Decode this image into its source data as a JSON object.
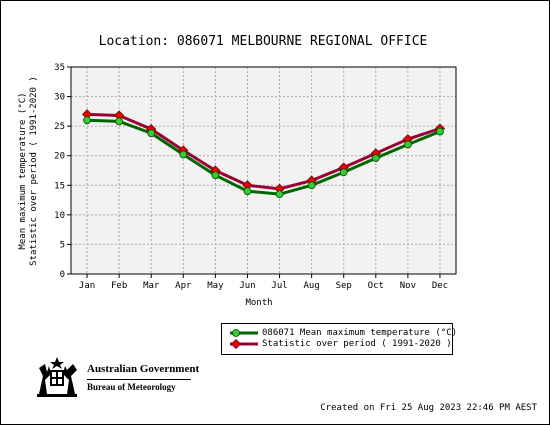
{
  "chart_data": {
    "type": "line",
    "title": "Location: 086071 MELBOURNE REGIONAL OFFICE",
    "xlabel": "Month",
    "ylabel": [
      "Mean maximum temperature (°C)",
      "Statistic over period ( 1991-2020  )"
    ],
    "categories": [
      "Jan",
      "Feb",
      "Mar",
      "Apr",
      "May",
      "Jun",
      "Jul",
      "Aug",
      "Sep",
      "Oct",
      "Nov",
      "Dec"
    ],
    "ylim": [
      0,
      35
    ],
    "yticks": [
      0,
      5,
      10,
      15,
      20,
      25,
      30,
      35
    ],
    "grid": true,
    "legend_position": "bottom-center",
    "series": [
      {
        "name": "086071 Mean maximum temperature (°C)",
        "values": [
          26.0,
          25.8,
          23.8,
          20.2,
          16.7,
          14.0,
          13.5,
          15.0,
          17.2,
          19.6,
          21.9,
          24.1
        ],
        "line_color": "#006600",
        "marker_color": "#33cc33",
        "marker": "circle"
      },
      {
        "name": "Statistic over period ( 1991-2020  )",
        "values": [
          27.0,
          26.8,
          24.5,
          20.9,
          17.5,
          15.0,
          14.4,
          15.8,
          18.0,
          20.4,
          22.8,
          24.6
        ],
        "line_color": "#990033",
        "marker_color": "#ee0000",
        "marker": "diamond"
      }
    ]
  },
  "branding": {
    "government": "Australian Government",
    "bureau": "Bureau of Meteorology"
  },
  "footer": {
    "created": "Created on Fri 25 Aug 2023 22:46 PM AEST"
  }
}
